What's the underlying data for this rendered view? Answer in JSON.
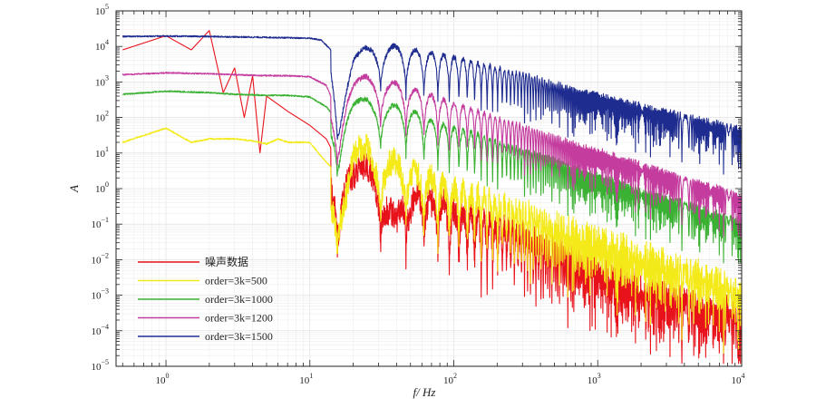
{
  "chart_data": {
    "type": "line",
    "xlabel": "f/ Hz",
    "ylabel": "A",
    "x_scale": "log",
    "y_scale": "log",
    "xlim": [
      0.45,
      10000
    ],
    "ylim": [
      1e-05,
      100000
    ],
    "x_tick_labels": [
      {
        "base": "10",
        "exp": "0"
      },
      {
        "base": "10",
        "exp": "1"
      },
      {
        "base": "10",
        "exp": "2"
      },
      {
        "base": "10",
        "exp": "3"
      },
      {
        "base": "10",
        "exp": "4"
      }
    ],
    "y_tick_labels": [
      {
        "base": "10",
        "exp": "−5"
      },
      {
        "base": "10",
        "exp": "−4"
      },
      {
        "base": "10",
        "exp": "−3"
      },
      {
        "base": "10",
        "exp": "−2"
      },
      {
        "base": "10",
        "exp": "−1"
      },
      {
        "base": "10",
        "exp": "0"
      },
      {
        "base": "10",
        "exp": "1"
      },
      {
        "base": "10",
        "exp": "2"
      },
      {
        "base": "10",
        "exp": "3"
      },
      {
        "base": "10",
        "exp": "4"
      },
      {
        "base": "10",
        "exp": "5"
      }
    ],
    "grid": true,
    "legend_position": "bottom-left",
    "series": [
      {
        "name": "噪声数据",
        "color": "#e8121b",
        "points": [
          [
            0.5,
            8000
          ],
          [
            1,
            20000
          ],
          [
            1.5,
            8000
          ],
          [
            2,
            28000
          ],
          [
            2.5,
            500
          ],
          [
            3,
            2500
          ],
          [
            3.5,
            100
          ],
          [
            4,
            1500
          ],
          [
            4.5,
            10
          ],
          [
            5,
            400
          ],
          [
            7,
            150
          ],
          [
            10,
            60
          ],
          [
            13,
            25
          ],
          [
            15,
            8
          ],
          [
            16,
            3
          ],
          [
            18,
            15
          ],
          [
            20,
            8
          ],
          [
            25,
            12
          ],
          [
            30,
            8
          ],
          [
            35,
            1
          ],
          [
            40,
            0.3
          ],
          [
            45,
            4
          ],
          [
            50,
            1
          ],
          [
            60,
            3
          ],
          [
            70,
            1
          ],
          [
            80,
            1.5
          ],
          [
            100,
            0.6
          ],
          [
            130,
            0.6
          ],
          [
            160,
            0.3
          ],
          [
            200,
            0.25
          ],
          [
            300,
            0.15
          ],
          [
            400,
            0.07
          ],
          [
            500,
            0.05
          ],
          [
            700,
            0.03
          ],
          [
            1000,
            0.02
          ],
          [
            1500,
            0.008
          ],
          [
            2000,
            0.005
          ],
          [
            3000,
            0.003
          ],
          [
            4000,
            0.002
          ],
          [
            6000,
            0.0015
          ],
          [
            10000,
            0.0008
          ]
        ]
      },
      {
        "name": "order=3k=500",
        "color": "#f4ea1a",
        "points": [
          [
            0.5,
            20
          ],
          [
            1,
            50
          ],
          [
            1.5,
            20
          ],
          [
            2,
            25
          ],
          [
            3,
            25
          ],
          [
            4,
            22
          ],
          [
            5,
            18
          ],
          [
            6,
            25
          ],
          [
            7,
            20
          ],
          [
            10,
            20
          ],
          [
            12,
            8
          ],
          [
            14,
            4
          ],
          [
            15,
            3
          ],
          [
            16,
            2
          ],
          [
            18,
            5
          ],
          [
            20,
            30
          ],
          [
            25,
            40
          ],
          [
            30,
            20
          ],
          [
            40,
            15
          ],
          [
            50,
            10
          ],
          [
            70,
            5
          ],
          [
            100,
            2.5
          ],
          [
            130,
            2
          ],
          [
            160,
            1.5
          ],
          [
            200,
            1
          ],
          [
            300,
            0.6
          ],
          [
            400,
            0.4
          ],
          [
            600,
            0.2
          ],
          [
            1000,
            0.1
          ],
          [
            2000,
            0.04
          ],
          [
            4000,
            0.015
          ],
          [
            10000,
            0.004
          ]
        ]
      },
      {
        "name": "order=3k=1000",
        "color": "#3ab132",
        "points": [
          [
            0.5,
            450
          ],
          [
            1,
            550
          ],
          [
            2,
            500
          ],
          [
            3,
            450
          ],
          [
            5,
            420
          ],
          [
            7,
            420
          ],
          [
            10,
            380
          ],
          [
            13,
            200
          ],
          [
            15,
            100
          ],
          [
            16,
            40
          ],
          [
            18,
            200
          ],
          [
            20,
            350
          ],
          [
            25,
            400
          ],
          [
            30,
            300
          ],
          [
            40,
            260
          ],
          [
            50,
            200
          ],
          [
            70,
            100
          ],
          [
            100,
            60
          ],
          [
            150,
            40
          ],
          [
            200,
            25
          ],
          [
            300,
            15
          ],
          [
            500,
            8
          ],
          [
            700,
            5
          ],
          [
            1000,
            3
          ],
          [
            2000,
            1.2
          ],
          [
            4000,
            0.5
          ],
          [
            10000,
            0.15
          ]
        ]
      },
      {
        "name": "order=3k=1200",
        "color": "#c43c9e",
        "points": [
          [
            0.5,
            1600
          ],
          [
            1,
            1800
          ],
          [
            2,
            1700
          ],
          [
            3,
            1600
          ],
          [
            5,
            1500
          ],
          [
            7,
            1500
          ],
          [
            10,
            1400
          ],
          [
            13,
            800
          ],
          [
            15,
            200
          ],
          [
            16,
            100
          ],
          [
            18,
            600
          ],
          [
            20,
            1200
          ],
          [
            25,
            1800
          ],
          [
            30,
            1400
          ],
          [
            40,
            1100
          ],
          [
            50,
            800
          ],
          [
            70,
            500
          ],
          [
            100,
            300
          ],
          [
            150,
            180
          ],
          [
            200,
            120
          ],
          [
            300,
            70
          ],
          [
            500,
            35
          ],
          [
            700,
            22
          ],
          [
            1000,
            15
          ],
          [
            2000,
            6
          ],
          [
            4000,
            2.5
          ],
          [
            10000,
            0.8
          ]
        ]
      },
      {
        "name": "order=3k=1500",
        "color": "#1f2c8f",
        "points": [
          [
            0.5,
            19000
          ],
          [
            1,
            19500
          ],
          [
            2,
            19000
          ],
          [
            3,
            18500
          ],
          [
            5,
            18000
          ],
          [
            7,
            17500
          ],
          [
            10,
            17000
          ],
          [
            12,
            15000
          ],
          [
            14,
            8000
          ],
          [
            15,
            1500
          ],
          [
            16,
            300
          ],
          [
            18,
            1500
          ],
          [
            20,
            6000
          ],
          [
            25,
            12000
          ],
          [
            30,
            14000
          ],
          [
            40,
            12000
          ],
          [
            50,
            10000
          ],
          [
            70,
            8000
          ],
          [
            100,
            6000
          ],
          [
            150,
            4000
          ],
          [
            200,
            3000
          ],
          [
            300,
            2000
          ],
          [
            500,
            1100
          ],
          [
            700,
            750
          ],
          [
            1000,
            550
          ],
          [
            2000,
            270
          ],
          [
            4000,
            140
          ],
          [
            10000,
            60
          ]
        ]
      }
    ]
  }
}
